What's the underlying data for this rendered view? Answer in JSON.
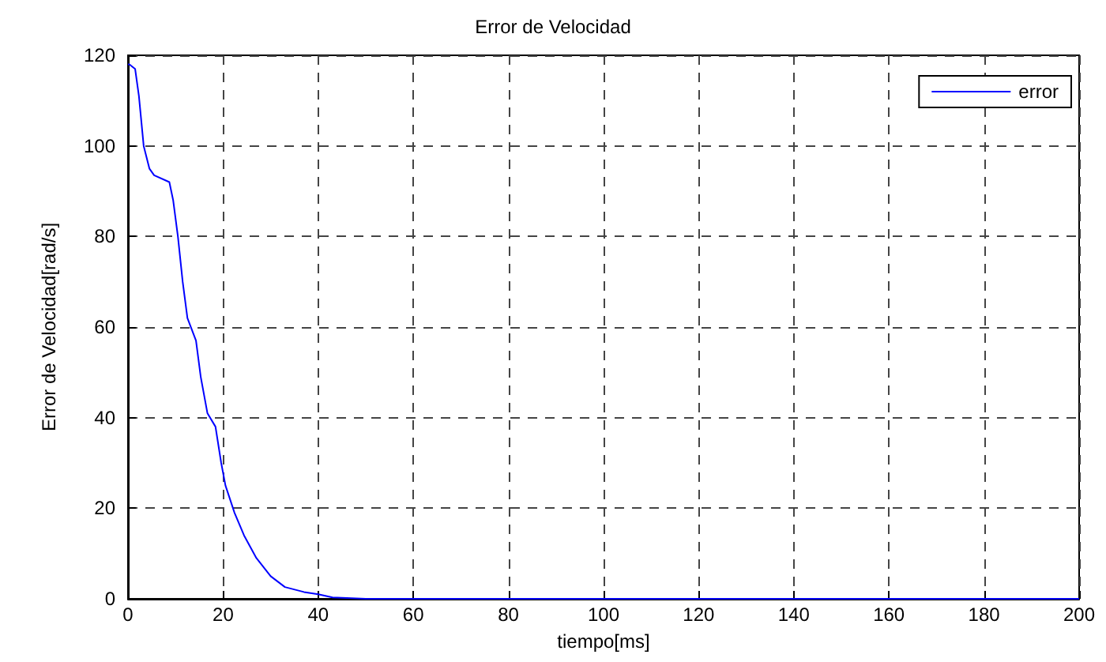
{
  "chart_data": {
    "type": "line",
    "title": "Error de Velocidad",
    "xlabel": "tiempo[ms]",
    "ylabel": "Error de Velocidad[rad/s]",
    "x": [
      0,
      0.3,
      1.5,
      2.3,
      3.3,
      4.5,
      5.5,
      8.7,
      9.5,
      10.5,
      11.5,
      12.5,
      14.3,
      15.3,
      16.7,
      18.4,
      19.6,
      20.5,
      22.4,
      24.4,
      27,
      30,
      33,
      37,
      40,
      43,
      50,
      200
    ],
    "series": [
      {
        "name": "error",
        "color": "#0000ff",
        "values": [
          118,
          118,
          117,
          111,
          100,
          95,
          93.5,
          92,
          88,
          80,
          70,
          62,
          57,
          49,
          41,
          38,
          30,
          25,
          19,
          14,
          9,
          5,
          2.6,
          1.5,
          1,
          0.3,
          0,
          0
        ]
      }
    ],
    "xlim": [
      0,
      200
    ],
    "xticks": [
      0,
      20,
      40,
      60,
      80,
      100,
      120,
      140,
      160,
      180,
      200
    ],
    "ylim": [
      0,
      120
    ],
    "yticks": [
      0,
      20,
      40,
      60,
      80,
      100,
      120
    ],
    "grid": true,
    "legend": "top right",
    "marker": "none",
    "line_style": "solid"
  }
}
